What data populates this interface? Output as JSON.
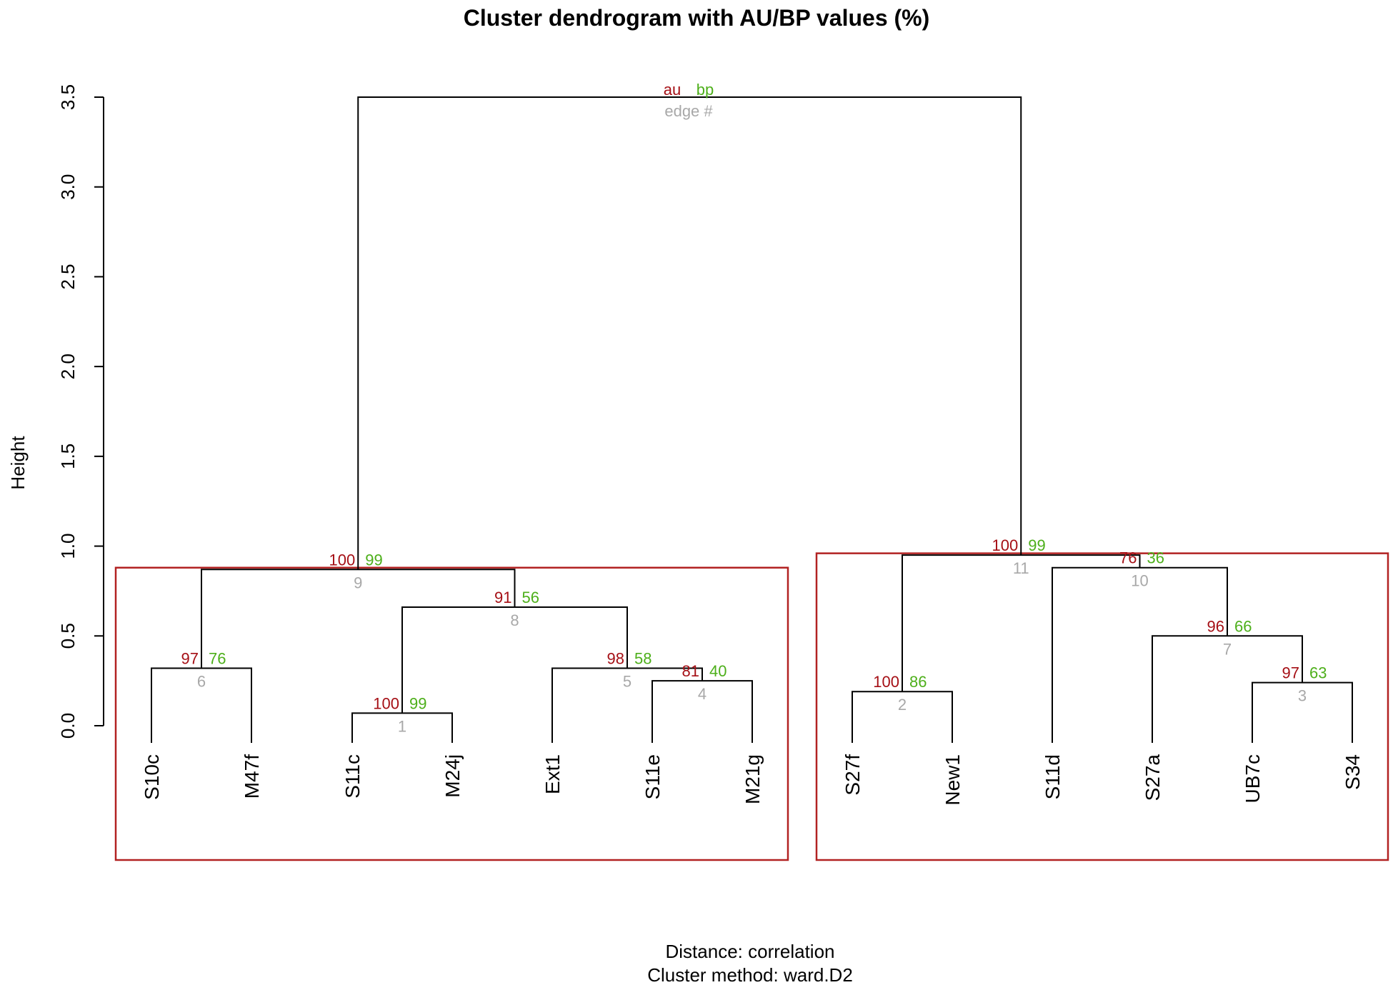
{
  "chart_data": {
    "type": "dendrogram",
    "title": "Cluster dendrogram with AU/BP values (%)",
    "ylabel": "Height",
    "ylim": [
      0,
      3.5
    ],
    "yticks": [
      "0.0",
      "0.5",
      "1.0",
      "1.5",
      "2.0",
      "2.5",
      "3.0",
      "3.5"
    ],
    "subtitle_lines": [
      "Distance:  correlation",
      "Cluster method: ward.D2"
    ],
    "legend": {
      "au": "au",
      "bp": "bp",
      "edge": "edge #"
    },
    "colors": {
      "au": "#a50f15",
      "bp": "#4daf1a",
      "edge": "#a8a8a8",
      "rect": "#b22222",
      "branch": "#000000"
    },
    "leaves": [
      {
        "id": 0,
        "label": "S10c"
      },
      {
        "id": 1,
        "label": "M47f"
      },
      {
        "id": 2,
        "label": "S11c"
      },
      {
        "id": 3,
        "label": "M24j"
      },
      {
        "id": 4,
        "label": "Ext1"
      },
      {
        "id": 5,
        "label": "S11e"
      },
      {
        "id": 6,
        "label": "M21g"
      },
      {
        "id": 7,
        "label": "S27f"
      },
      {
        "id": 8,
        "label": "New1"
      },
      {
        "id": 9,
        "label": "S11d"
      },
      {
        "id": 10,
        "label": "S27a"
      },
      {
        "id": 11,
        "label": "UB7c"
      },
      {
        "id": 12,
        "label": "S34"
      }
    ],
    "merges": [
      {
        "edge": 1,
        "left": "L2",
        "right": "L3",
        "height": 0.07,
        "au": "100",
        "bp": "99"
      },
      {
        "edge": 2,
        "left": "L7",
        "right": "L8",
        "height": 0.19,
        "au": "100",
        "bp": "86"
      },
      {
        "edge": 3,
        "left": "L11",
        "right": "L12",
        "height": 0.24,
        "au": "97",
        "bp": "63"
      },
      {
        "edge": 4,
        "left": "L5",
        "right": "L6",
        "height": 0.25,
        "au": "81",
        "bp": "40"
      },
      {
        "edge": 5,
        "left": "L4",
        "right": "E4",
        "height": 0.32,
        "au": "98",
        "bp": "58"
      },
      {
        "edge": 6,
        "left": "L0",
        "right": "L1",
        "height": 0.32,
        "au": "97",
        "bp": "76"
      },
      {
        "edge": 7,
        "left": "L10",
        "right": "E3",
        "height": 0.5,
        "au": "96",
        "bp": "66"
      },
      {
        "edge": 8,
        "left": "E1",
        "right": "E5",
        "height": 0.66,
        "au": "91",
        "bp": "56"
      },
      {
        "edge": 9,
        "left": "E6",
        "right": "E8",
        "height": 0.87,
        "au": "100",
        "bp": "99"
      },
      {
        "edge": 10,
        "left": "L9",
        "right": "E7",
        "height": 0.88,
        "au": "76",
        "bp": "36"
      },
      {
        "edge": 11,
        "left": "E2",
        "right": "E10",
        "height": 0.95,
        "au": "100",
        "bp": "99"
      },
      {
        "edge": 12,
        "left": "E9",
        "right": "E11",
        "height": 3.5,
        "au": "",
        "bp": ""
      }
    ],
    "cluster_boxes": [
      {
        "leaves": [
          0,
          6
        ]
      },
      {
        "leaves": [
          7,
          12
        ]
      }
    ]
  }
}
